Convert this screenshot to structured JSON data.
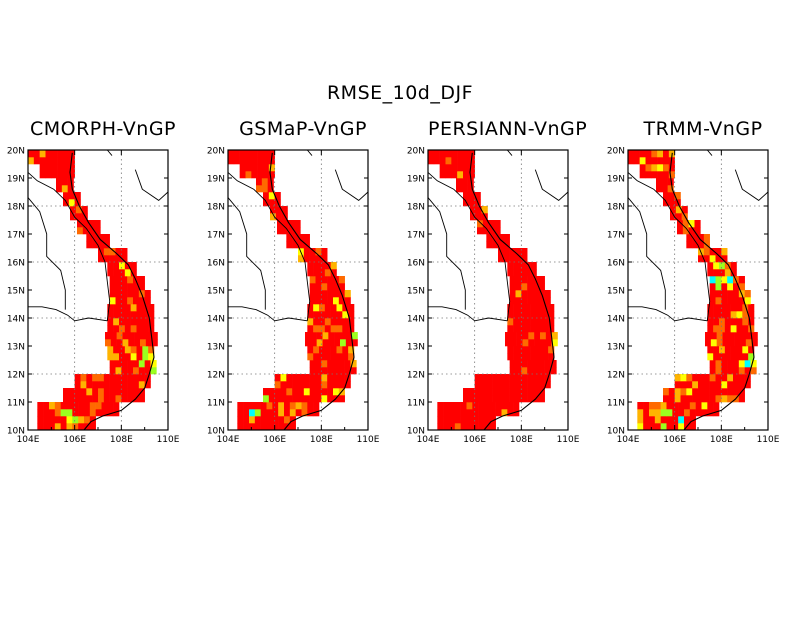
{
  "title": "RMSE_10d_DJF",
  "panels": [
    {
      "title": "CMORPH-VnGP"
    },
    {
      "title": "GSMaP-VnGP"
    },
    {
      "title": "PERSIANN-VnGP"
    },
    {
      "title": "TRMM-VnGP"
    }
  ],
  "axes": {
    "lon_ticks": [
      "104E",
      "106E",
      "108E",
      "110E"
    ],
    "lat_ticks": [
      "10N",
      "11N",
      "12N",
      "13N",
      "14N",
      "15N",
      "16N",
      "17N",
      "18N",
      "19N",
      "20N"
    ],
    "lon_range": [
      104,
      110
    ],
    "lat_range": [
      10,
      20
    ],
    "grid": "dotted"
  },
  "colors": {
    "high": "#ff0000",
    "mid_high": "#ff6a00",
    "mid": "#ffb400",
    "low_mid": "#ffff00",
    "low": "#9bff1e",
    "lowest": "#00ffff"
  }
}
